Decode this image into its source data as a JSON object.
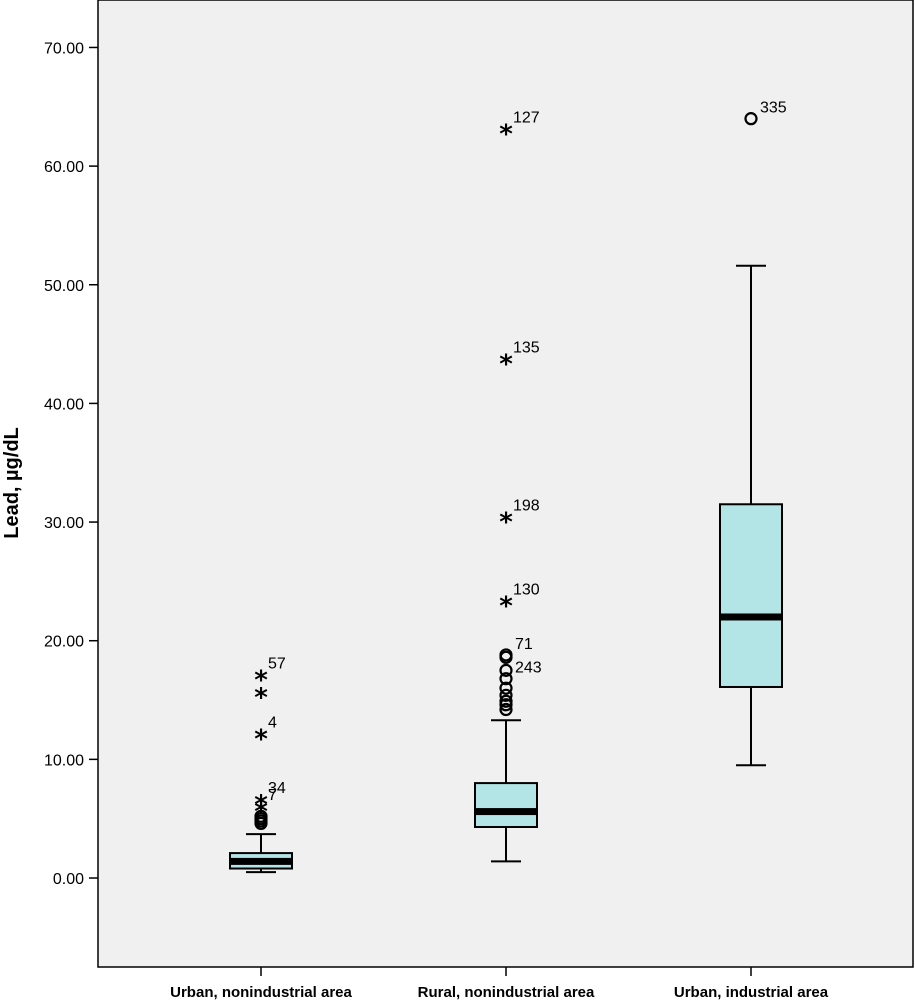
{
  "chart_data": {
    "type": "boxplot",
    "ylabel": "Lead, µg/dL",
    "ylim": [
      -7.5,
      74
    ],
    "yticks": [
      0,
      10,
      20,
      30,
      40,
      50,
      60,
      70
    ],
    "ytick_labels": [
      "0.00",
      "10.00",
      "20.00",
      "30.00",
      "40.00",
      "50.00",
      "60.00",
      "70.00"
    ],
    "grid": false,
    "colors": {
      "box_fill": "#b3e5e6",
      "plot_bg": "#f0f0f0",
      "stroke": "#000000"
    },
    "groups": [
      {
        "category": "Urban, nonindustrial area",
        "whisker_low": 0.5,
        "q1": 0.8,
        "median": 1.4,
        "q3": 2.1,
        "whisker_high": 3.7,
        "outliers": [
          {
            "value": 4.6,
            "label": ""
          },
          {
            "value": 4.8,
            "label": ""
          },
          {
            "value": 5.0,
            "label": ""
          },
          {
            "value": 5.2,
            "label": ""
          }
        ],
        "extremes": [
          {
            "value": 17.0,
            "label": "57"
          },
          {
            "value": 15.5,
            "label": ""
          },
          {
            "value": 12.0,
            "label": "4"
          },
          {
            "value": 6.5,
            "label": "34"
          },
          {
            "value": 5.9,
            "label": "7"
          }
        ]
      },
      {
        "category": "Rural, nonindustrial area",
        "whisker_low": 1.4,
        "q1": 4.3,
        "median": 5.6,
        "q3": 8.0,
        "whisker_high": 13.3,
        "outliers": [
          {
            "value": 18.8,
            "label": "71"
          },
          {
            "value": 18.6,
            "label": ""
          },
          {
            "value": 17.5,
            "label": ""
          },
          {
            "value": 16.8,
            "label": "243"
          },
          {
            "value": 16.0,
            "label": ""
          },
          {
            "value": 15.4,
            "label": ""
          },
          {
            "value": 14.9,
            "label": ""
          },
          {
            "value": 14.6,
            "label": ""
          },
          {
            "value": 14.2,
            "label": ""
          }
        ],
        "extremes": [
          {
            "value": 63.0,
            "label": "127"
          },
          {
            "value": 43.6,
            "label": "135"
          },
          {
            "value": 30.3,
            "label": "198"
          },
          {
            "value": 23.2,
            "label": "130"
          }
        ]
      },
      {
        "category": "Urban, industrial area",
        "whisker_low": 9.5,
        "q1": 16.1,
        "median": 22.0,
        "q3": 31.5,
        "whisker_high": 51.6,
        "outliers": [
          {
            "value": 64.0,
            "label": "335"
          }
        ],
        "extremes": []
      }
    ]
  }
}
